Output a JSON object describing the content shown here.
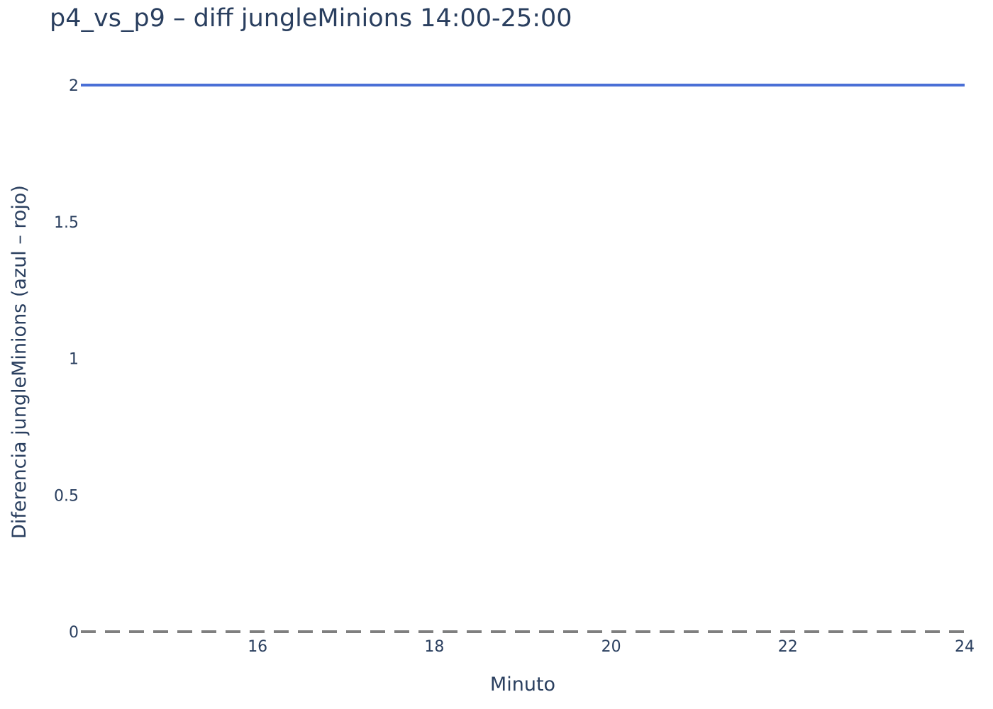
{
  "chart_data": {
    "type": "line",
    "title": "p4_vs_p9 – diff jungleMinions 14:00-25:00",
    "xlabel": "Minuto",
    "ylabel": "Diferencia jungleMinions (azul – rojo)",
    "xlim": [
      14,
      24
    ],
    "ylim": [
      0,
      2
    ],
    "x_ticks": [
      16,
      18,
      20,
      22,
      24
    ],
    "y_ticks": [
      0,
      0.5,
      1,
      1.5,
      2
    ],
    "x_tick_labels": [
      "16",
      "18",
      "20",
      "22",
      "24"
    ],
    "y_tick_labels": [
      "0",
      "0.5",
      "1",
      "1.5",
      "2"
    ],
    "grid": false,
    "series": [
      {
        "x": [
          14,
          15,
          16,
          17,
          18,
          19,
          20,
          21,
          22,
          23,
          24
        ],
        "values": [
          2,
          2,
          2,
          2,
          2,
          2,
          2,
          2,
          2,
          2,
          2
        ],
        "color": "#4a6fd6"
      }
    ],
    "reference_line": {
      "y": 0,
      "style": "dashed",
      "color": "#7f7f7f"
    }
  }
}
